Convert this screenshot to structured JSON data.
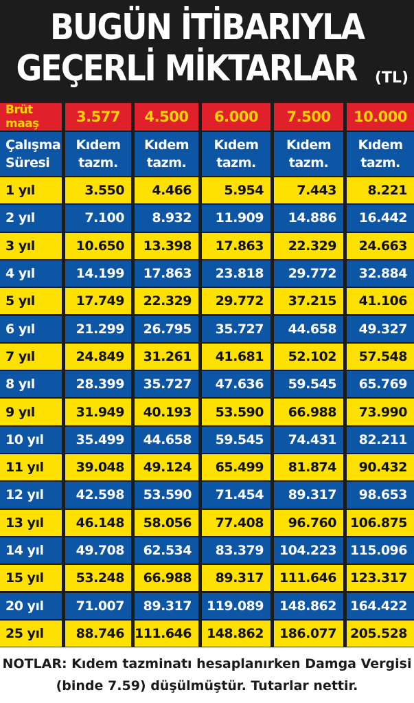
{
  "title": {
    "line1": "BUGÜN İTİBARIYLA",
    "line2": "GEÇERLİ MİKTARLAR",
    "unit": "(TL)"
  },
  "table": {
    "header": [
      "Brüt maaş",
      "3.577",
      "4.500",
      "6.000",
      "7.500",
      "10.000"
    ],
    "subheader": [
      "Çalışma\nSüresi",
      "Kıdem\ntazm.",
      "Kıdem\ntazm.",
      "Kıdem\ntazm.",
      "Kıdem\ntazm.",
      "Kıdem\ntazm."
    ],
    "rows": [
      [
        "1 yıl",
        "3.550",
        "4.466",
        "5.954",
        "7.443",
        "8.221"
      ],
      [
        "2 yıl",
        "7.100",
        "8.932",
        "11.909",
        "14.886",
        "16.442"
      ],
      [
        "3 yıl",
        "10.650",
        "13.398",
        "17.863",
        "22.329",
        "24.663"
      ],
      [
        "4 yıl",
        "14.199",
        "17.863",
        "23.818",
        "29.772",
        "32.884"
      ],
      [
        "5 yıl",
        "17.749",
        "22.329",
        "29.772",
        "37.215",
        "41.106"
      ],
      [
        "6 yıl",
        "21.299",
        "26.795",
        "35.727",
        "44.658",
        "49.327"
      ],
      [
        "7 yıl",
        "24.849",
        "31.261",
        "41.681",
        "52.102",
        "57.548"
      ],
      [
        "8 yıl",
        "28.399",
        "35.727",
        "47.636",
        "59.545",
        "65.769"
      ],
      [
        "9 yıl",
        "31.949",
        "40.193",
        "53.590",
        "66.988",
        "73.990"
      ],
      [
        "10 yıl",
        "35.499",
        "44.658",
        "59.545",
        "74.431",
        "82.211"
      ],
      [
        "11 yıl",
        "39.048",
        "49.124",
        "65.499",
        "81.874",
        "90.432"
      ],
      [
        "12 yıl",
        "42.598",
        "53.590",
        "71.454",
        "89.317",
        "98.653"
      ],
      [
        "13 yıl",
        "46.148",
        "58.056",
        "77.408",
        "96.760",
        "106.875"
      ],
      [
        "14 yıl",
        "49.708",
        "62.534",
        "83.379",
        "104.223",
        "115.096"
      ],
      [
        "15 yıl",
        "53.248",
        "66.988",
        "89.317",
        "111.646",
        "123.317"
      ],
      [
        "20 yıl",
        "71.007",
        "89.317",
        "119.089",
        "148.862",
        "164.422"
      ],
      [
        "25 yıl",
        "88.746",
        "111.646",
        "148.862",
        "186.077",
        "205.528"
      ]
    ]
  },
  "notes": {
    "line1": "NOTLAR: Kıdem tazminatı hesaplanırken Damga Vergisi",
    "line2": "(binde 7.59) düşülmüştür. Tutarlar nettir."
  },
  "colors": {
    "background": "#1c1c1c",
    "header_red": "#e0202a",
    "header_text": "#ffd200",
    "blue": "#0d56a6",
    "yellow": "#ffe100"
  }
}
